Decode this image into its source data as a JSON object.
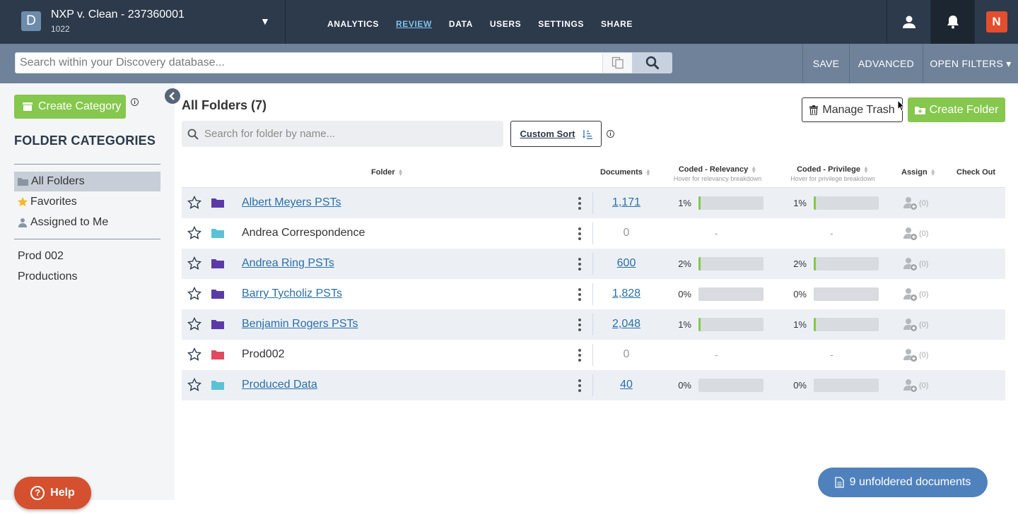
{
  "case": {
    "badge": "D",
    "title": "NXP v. Clean - 237360001",
    "subtitle": "1022"
  },
  "nav": {
    "items": [
      "ANALYTICS",
      "REVIEW",
      "DATA",
      "USERS",
      "SETTINGS",
      "SHARE"
    ]
  },
  "brand": {
    "badge": "N"
  },
  "search": {
    "placeholder": "Search within your Discovery database...",
    "save_label": "SAVE",
    "advanced_label": "ADVANCED",
    "open_filters_label": "OPEN FILTERS ▾"
  },
  "sidebar": {
    "create_category_label": "Create Category",
    "section_title": "FOLDER CATEGORIES",
    "items": [
      {
        "label": "All Folders",
        "icon": "folder-icon"
      },
      {
        "label": "Favorites",
        "icon": "star-icon"
      },
      {
        "label": "Assigned to Me",
        "icon": "user-icon"
      }
    ],
    "categories": [
      "Prod 002",
      "Productions"
    ]
  },
  "help_label": "Help",
  "main": {
    "title": "All Folders (7)",
    "manage_trash_label": "Manage Trash",
    "create_folder_label": "Create Folder",
    "folder_search_placeholder": "Search for folder by name...",
    "custom_sort_label": "Custom Sort"
  },
  "table": {
    "headers": {
      "folder": "Folder",
      "documents": "Documents",
      "relevancy": "Coded - Relevancy",
      "relevancy_sub": "Hover for relevancy breakdown",
      "privilege": "Coded - Privilege",
      "privilege_sub": "Hover for privilege breakdown",
      "assign": "Assign",
      "checkout": "Check Out"
    },
    "rows": [
      {
        "name": "Albert Meyers PSTs",
        "folder_color": "#5b3aa8",
        "linked": true,
        "documents": "1,171",
        "rel_pct": "1%",
        "rel_fill": 0.01,
        "priv_pct": "1%",
        "priv_fill": 0.01,
        "assign_count": "(0)"
      },
      {
        "name": "Andrea Correspondence",
        "folder_color": "#5bc2d6",
        "linked": false,
        "documents": "0",
        "rel_pct": "-",
        "rel_fill": null,
        "priv_pct": "-",
        "priv_fill": null,
        "assign_count": "(0)"
      },
      {
        "name": "Andrea Ring PSTs",
        "folder_color": "#5b3aa8",
        "linked": true,
        "documents": "600",
        "rel_pct": "2%",
        "rel_fill": 0.02,
        "priv_pct": "2%",
        "priv_fill": 0.02,
        "assign_count": "(0)"
      },
      {
        "name": "Barry Tycholiz PSTs",
        "folder_color": "#5b3aa8",
        "linked": true,
        "documents": "1,828",
        "rel_pct": "0%",
        "rel_fill": 0,
        "priv_pct": "0%",
        "priv_fill": 0,
        "assign_count": "(0)"
      },
      {
        "name": "Benjamin Rogers PSTs",
        "folder_color": "#5b3aa8",
        "linked": true,
        "documents": "2,048",
        "rel_pct": "1%",
        "rel_fill": 0.01,
        "priv_pct": "1%",
        "priv_fill": 0.01,
        "assign_count": "(0)"
      },
      {
        "name": "Prod002",
        "folder_color": "#e04a5f",
        "linked": false,
        "documents": "0",
        "rel_pct": "-",
        "rel_fill": null,
        "priv_pct": "-",
        "priv_fill": null,
        "assign_count": "(0)"
      },
      {
        "name": "Produced Data",
        "folder_color": "#5bc2d6",
        "linked": true,
        "documents": "40",
        "rel_pct": "0%",
        "rel_fill": 0,
        "priv_pct": "0%",
        "priv_fill": 0,
        "assign_count": "(0)"
      }
    ]
  },
  "unfoldered_label": "9 unfoldered documents",
  "colors": {
    "nav_bg": "#2c3a4b",
    "search_bg": "#6f8299",
    "green": "#86c74d",
    "link": "#2a6fa8",
    "help": "#d4502e",
    "pill": "#4f81bd"
  }
}
